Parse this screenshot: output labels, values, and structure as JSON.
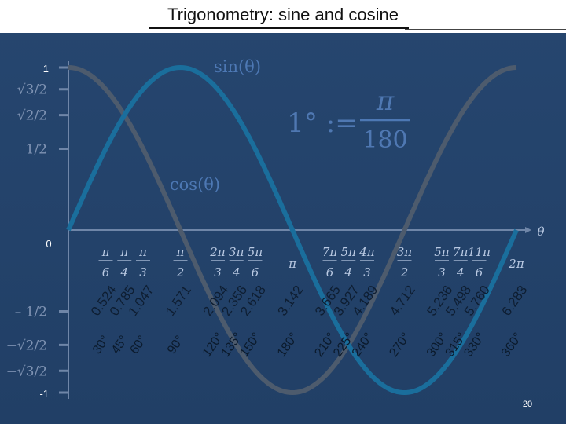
{
  "title": "Trigonometry: sine and cosine",
  "colors": {
    "background": "#23426a",
    "sine": "#1a6e9c",
    "cosine": "#4d5b6d",
    "accent_label": "#4d78b4",
    "degree_text": "#0b1a2c",
    "decimal_text": "#0e1e32"
  },
  "functions": {
    "sine": "sin(θ)",
    "cosine": "cos(θ)"
  },
  "axis": {
    "variable": "θ",
    "origin_label": "0",
    "y_labels": [
      "1",
      "√3/2",
      "√2/2",
      "1/2",
      "– 1/2",
      "−√2/2",
      "−√3/2",
      "-1"
    ]
  },
  "definition": {
    "lhs": "1° :=",
    "numerator": "π",
    "denominator": "180"
  },
  "angles": [
    {
      "deg": 30,
      "degree_label": "30°",
      "decimal": "0.524",
      "rad_num": "π",
      "rad_den": "6"
    },
    {
      "deg": 45,
      "degree_label": "45°",
      "decimal": "0.785",
      "rad_num": "π",
      "rad_den": "4"
    },
    {
      "deg": 60,
      "degree_label": "60°",
      "decimal": "1.047",
      "rad_num": "π",
      "rad_den": "3"
    },
    {
      "deg": 90,
      "degree_label": "90°",
      "decimal": "1.571",
      "rad_num": "π",
      "rad_den": "2"
    },
    {
      "deg": 120,
      "degree_label": "120°",
      "decimal": "2.094",
      "rad_num": "2π",
      "rad_den": "3"
    },
    {
      "deg": 135,
      "degree_label": "135°",
      "decimal": "2.356",
      "rad_num": "3π",
      "rad_den": "4"
    },
    {
      "deg": 150,
      "degree_label": "150°",
      "decimal": "2.618",
      "rad_num": "5π",
      "rad_den": "6"
    },
    {
      "deg": 180,
      "degree_label": "180°",
      "decimal": "3.142",
      "rad_num": "π",
      "rad_den": ""
    },
    {
      "deg": 210,
      "degree_label": "210°",
      "decimal": "3.665",
      "rad_num": "7π",
      "rad_den": "6"
    },
    {
      "deg": 225,
      "degree_label": "225°",
      "decimal": "3.927",
      "rad_num": "5π",
      "rad_den": "4"
    },
    {
      "deg": 240,
      "degree_label": "240°",
      "decimal": "4.189",
      "rad_num": "4π",
      "rad_den": "3"
    },
    {
      "deg": 270,
      "degree_label": "270°",
      "decimal": "4.712",
      "rad_num": "3π",
      "rad_den": "2"
    },
    {
      "deg": 300,
      "degree_label": "300°",
      "decimal": "5.236",
      "rad_num": "5π",
      "rad_den": "3"
    },
    {
      "deg": 315,
      "degree_label": "315°",
      "decimal": "5.498",
      "rad_num": "7π",
      "rad_den": "4"
    },
    {
      "deg": 330,
      "degree_label": "330°",
      "decimal": "5.760",
      "rad_num": "11π",
      "rad_den": "6"
    },
    {
      "deg": 360,
      "degree_label": "360°",
      "decimal": "6.283",
      "rad_num": "2π",
      "rad_den": ""
    }
  ],
  "page_number": "20"
}
